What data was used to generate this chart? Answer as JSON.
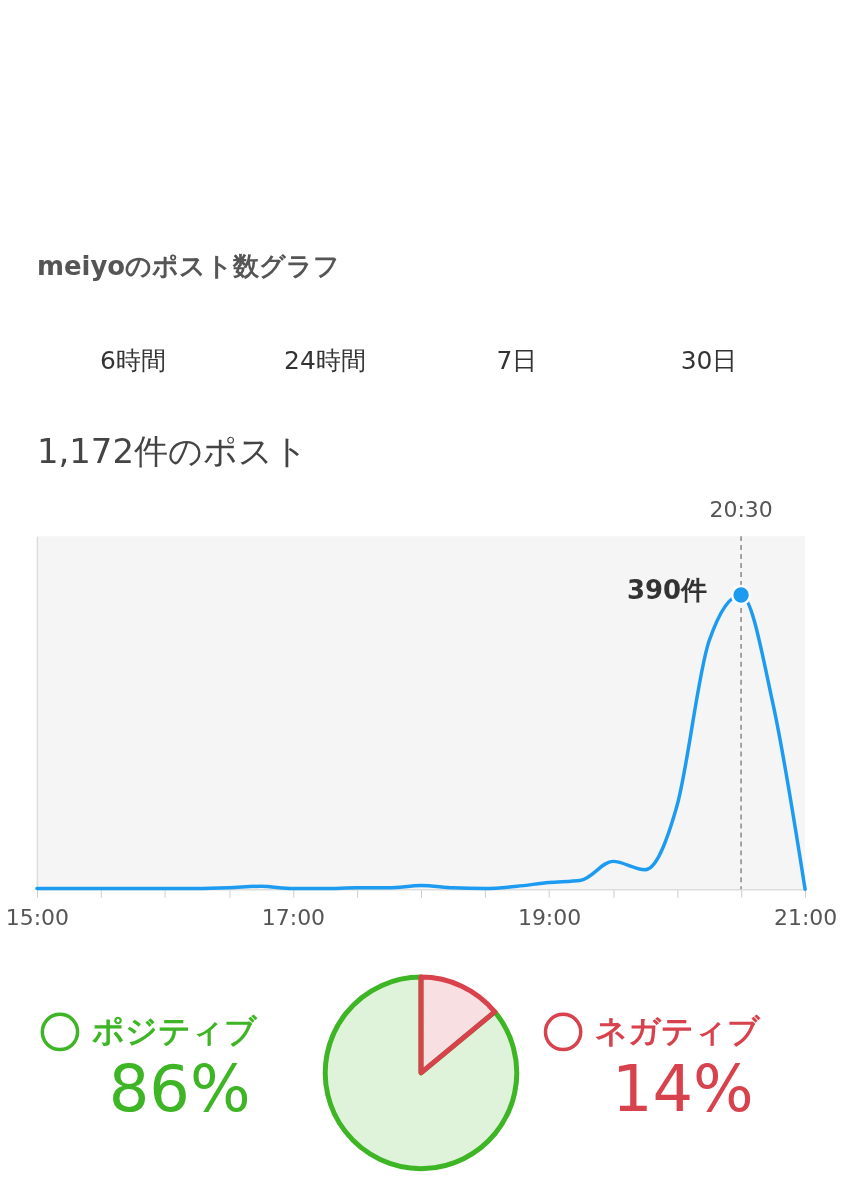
{
  "chart_data": [
    {
      "type": "line",
      "title": "meiyoのポスト数グラフ",
      "subtitle": "1,172件のポスト",
      "annotations": [
        "6時間",
        "24時間",
        "7日",
        "30日"
      ],
      "tick_labels": "x",
      "xlim": [
        15,
        21
      ],
      "ylim": [
        0,
        468
      ],
      "xticks": [
        {
          "value": 15,
          "label": "15:00"
        },
        {
          "value": 15.5,
          "label": null
        },
        {
          "value": 16,
          "label": null
        },
        {
          "value": 16.5,
          "label": null
        },
        {
          "value": 17,
          "label": "17:00"
        },
        {
          "value": 17.5,
          "label": null
        },
        {
          "value": 18,
          "label": null
        },
        {
          "value": 18.5,
          "label": null
        },
        {
          "value": 19,
          "label": "19:00"
        },
        {
          "value": 19.5,
          "label": null
        },
        {
          "value": 20,
          "label": null
        },
        {
          "value": 20.5,
          "label": null
        },
        {
          "value": 21,
          "label": "21:00"
        }
      ],
      "ref_lines": [
        {
          "axis": "x",
          "value": 20.5,
          "label": "20:30",
          "line_style": "dashed",
          "color": "#888888"
        }
      ],
      "series": [
        {
          "type": "line",
          "color": "#1d9bf0",
          "x": [
            15,
            15.25,
            15.5,
            15.75,
            16,
            16.25,
            16.5,
            16.75,
            17,
            17.25,
            17.5,
            17.75,
            18,
            18.25,
            18.5,
            18.75,
            19,
            19.25,
            19.5,
            19.75,
            20,
            20.25,
            20.5,
            20.75,
            21
          ],
          "values": [
            1,
            1,
            1,
            1,
            1,
            1,
            2,
            4,
            1,
            1,
            2,
            2,
            5,
            2,
            1,
            4,
            9,
            12,
            37,
            26,
            111,
            329,
            390,
            245,
            0
          ]
        },
        {
          "type": "scatter",
          "color": "#1d9bf0",
          "x": [
            20.5
          ],
          "values": [
            390
          ],
          "value_labels": [
            "390件"
          ]
        }
      ]
    },
    {
      "type": "pie",
      "categories": [
        "ポジティブ",
        "ネガティブ"
      ],
      "values": [
        86,
        14
      ],
      "colors": [
        "#3db524",
        "#d7424d"
      ],
      "value_labels": [
        "86%",
        "14%"
      ],
      "legend": "top"
    }
  ]
}
